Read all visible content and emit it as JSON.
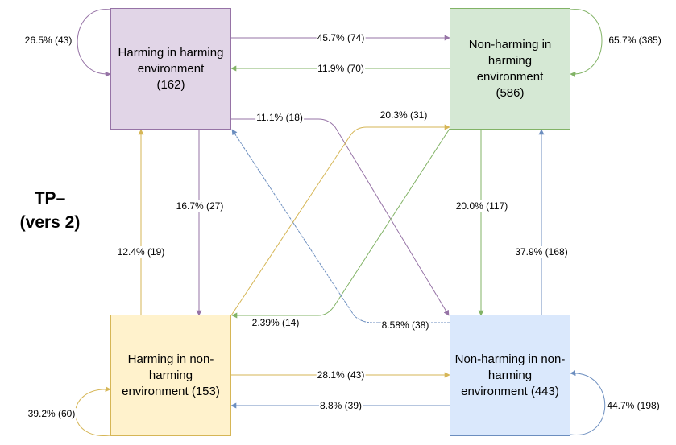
{
  "title": "TP–\n(vers 2)",
  "nodes": {
    "hh": {
      "label": "Harming in harming\nenvironment\n(162)",
      "fill": "#e1d5e7",
      "stroke": "#9673a6"
    },
    "nh": {
      "label": "Non-harming in\nharming\nenvironment\n(586)",
      "fill": "#d5e8d4",
      "stroke": "#82b366"
    },
    "hn": {
      "label": "Harming in non-\nharming\nenvironment (153)",
      "fill": "#fff2cc",
      "stroke": "#d6b656"
    },
    "nn": {
      "label": "Non-harming in non-\nharming\nenvironment (443)",
      "fill": "#dae8fc",
      "stroke": "#6c8ebf"
    }
  },
  "edges": {
    "hh_self": "26.5% (43)",
    "hh_nh": "45.7% (74)",
    "nh_hh": "11.9% (70)",
    "nh_self": "65.7% (385)",
    "hh_nn": "11.1% (18)",
    "hn_nh": "20.3% (31)",
    "hh_hn": "16.7% (27)",
    "nh_nn": "20.0% (117)",
    "hn_hh": "12.4% (19)",
    "nn_nh": "37.9% (168)",
    "nh_hn": "2.39% (14)",
    "nn_hh": "8.58% (38)",
    "hn_nn": "28.1% (43)",
    "nn_hn": "8.8% (39)",
    "hn_self": "39.2% (60)",
    "nn_self": "44.7% (198)"
  }
}
